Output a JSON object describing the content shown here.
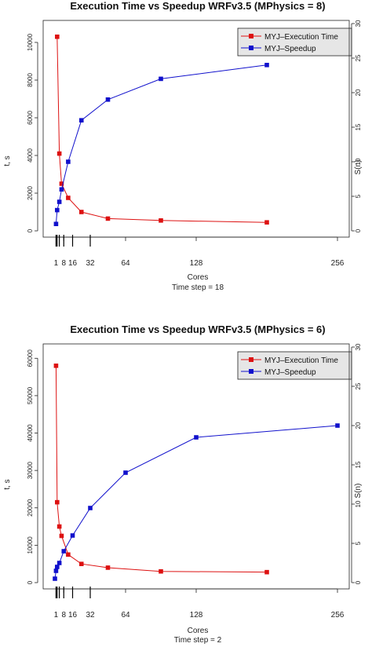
{
  "charts": [
    {
      "title": "Execution Time vs Speedup WRFv3.5 (MPhysics = 8)",
      "ylabel": "t, s",
      "y2label": "S(n)",
      "xlabel": "Cores",
      "subtitle": "Time step = 18",
      "legend": [
        "MYJ–Execution Time",
        "MYJ–Speedup"
      ]
    },
    {
      "title": "Execution Time vs Speedup WRFv3.5 (MPhysics = 6)",
      "ylabel": "t, s",
      "y2label": "S(n)",
      "xlabel": "Cores",
      "subtitle": "Time step = 2",
      "legend": [
        "MYJ–Execution Time",
        "MYJ–Speedup"
      ]
    }
  ],
  "chart_data": [
    {
      "type": "line",
      "title": "Execution Time vs Speedup WRFv3.5 (MPhysics = 8)",
      "xlabel": "Cores",
      "subtitle": "Time step = 18",
      "ylabel": "t, s",
      "y2label": "S(n)",
      "x_ticks": [
        1,
        8,
        16,
        32,
        64,
        128,
        256
      ],
      "y_ticks": [
        0,
        2000,
        4000,
        6000,
        8000,
        10000
      ],
      "y2_ticks": [
        0,
        5,
        10,
        15,
        20,
        25,
        30
      ],
      "ylim": [
        0,
        11000
      ],
      "y2lim": [
        0,
        30
      ],
      "rug": [
        1,
        2,
        4,
        8,
        16,
        32
      ],
      "grid": false,
      "legend_position": "top-right",
      "series": [
        {
          "name": "MYJ–Execution Time",
          "color": "#dd1111",
          "axis": "left",
          "x": [
            2,
            4,
            6,
            12,
            24,
            48,
            96,
            192
          ],
          "y": [
            10300,
            4100,
            2500,
            1750,
            1000,
            650,
            550,
            450
          ]
        },
        {
          "name": "MYJ–Speedup",
          "color": "#1111cc",
          "axis": "right",
          "x": [
            1,
            2,
            4,
            6,
            12,
            24,
            48,
            96,
            192
          ],
          "y": [
            1,
            3,
            4.2,
            6,
            10,
            16,
            19,
            22,
            24
          ]
        }
      ]
    },
    {
      "type": "line",
      "title": "Execution Time vs Speedup WRFv3.5 (MPhysics = 6)",
      "xlabel": "Cores",
      "subtitle": "Time step = 2",
      "ylabel": "t, s",
      "y2label": "S(n)",
      "x_ticks": [
        1,
        8,
        16,
        32,
        64,
        128,
        256
      ],
      "y_ticks": [
        0,
        10000,
        20000,
        30000,
        40000,
        50000,
        60000
      ],
      "y2_ticks": [
        0,
        5,
        10,
        15,
        20,
        25,
        30
      ],
      "ylim": [
        0,
        63000
      ],
      "y2lim": [
        0,
        30
      ],
      "rug": [
        1,
        2,
        4,
        8,
        16,
        32
      ],
      "grid": false,
      "legend_position": "top-right",
      "series": [
        {
          "name": "MYJ–Execution Time",
          "color": "#dd1111",
          "axis": "left",
          "x": [
            1,
            2,
            4,
            6,
            12,
            24,
            48,
            96,
            192
          ],
          "y": [
            58000,
            21500,
            15000,
            12500,
            7500,
            5000,
            4000,
            3000,
            2800
          ]
        },
        {
          "name": "MYJ–Speedup",
          "color": "#1111cc",
          "axis": "right",
          "x": [
            0,
            1,
            2,
            4,
            8,
            16,
            32,
            64,
            128,
            256
          ],
          "y": [
            0.5,
            1.5,
            2,
            2.5,
            4,
            6,
            9.5,
            14,
            18.5,
            20
          ]
        }
      ]
    }
  ]
}
